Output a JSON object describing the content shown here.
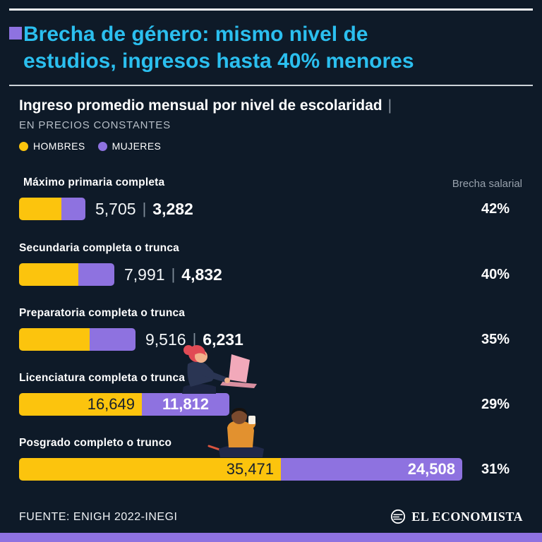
{
  "colors": {
    "background": "#0e1a28",
    "title_cyan": "#2bbfef",
    "men_yellow": "#fcc40d",
    "women_purple": "#8e72e0",
    "muted_gray": "#9aa4b0",
    "dark_text_on_yellow": "#16202e"
  },
  "header": {
    "title_line1": "Brecha de género: mismo nivel de",
    "title_line2": "estudios, ingresos hasta 40% menores"
  },
  "section": {
    "title": "Ingreso promedio mensual por nivel de escolaridad",
    "pipe": "|",
    "subtitle": "EN PRECIOS CONSTANTES"
  },
  "legend": {
    "men": "HOMBRES",
    "women": "MUJERES"
  },
  "gap_column_label": "Brecha salarial",
  "rows": [
    {
      "label": "Máximo primaria completa",
      "men": "5,705",
      "sep": "|",
      "women": "3,282",
      "gap": "42%"
    },
    {
      "label": "Secundaria completa o trunca",
      "men": "7,991",
      "sep": "|",
      "women": "4,832",
      "gap": "40%"
    },
    {
      "label": "Preparatoria completa o trunca",
      "men": "9,516",
      "sep": "|",
      "women": "6,231",
      "gap": "35%"
    },
    {
      "label": "Licenciatura completa o trunca",
      "men": "16,649",
      "women": "11,812",
      "gap": "29%"
    },
    {
      "label": "Posgrado completo o trunco",
      "men": "35,471",
      "women": "24,508",
      "gap": "31%"
    }
  ],
  "footer": {
    "source": "FUENTE: ENIGH 2022-INEGI",
    "brand": "EL ECONOMISTA"
  },
  "chart_data": {
    "type": "bar",
    "orientation": "horizontal",
    "stacked": true,
    "title": "Ingreso promedio mensual por nivel de escolaridad",
    "subtitle": "EN PRECIOS CONSTANTES",
    "categories": [
      "Máximo primaria completa",
      "Secundaria completa o trunca",
      "Preparatoria completa o trunca",
      "Licenciatura completa o trunca",
      "Posgrado completo o trunco"
    ],
    "series": [
      {
        "name": "HOMBRES",
        "color": "#fcc40d",
        "values": [
          5705,
          7991,
          9516,
          16649,
          35471
        ]
      },
      {
        "name": "MUJERES",
        "color": "#8e72e0",
        "values": [
          3282,
          4832,
          6231,
          11812,
          24508
        ]
      }
    ],
    "gap_percent": [
      42,
      40,
      35,
      29,
      31
    ],
    "gap_column_label": "Brecha salarial",
    "legend_position": "top-left",
    "value_labels": "shown",
    "grid": false
  }
}
